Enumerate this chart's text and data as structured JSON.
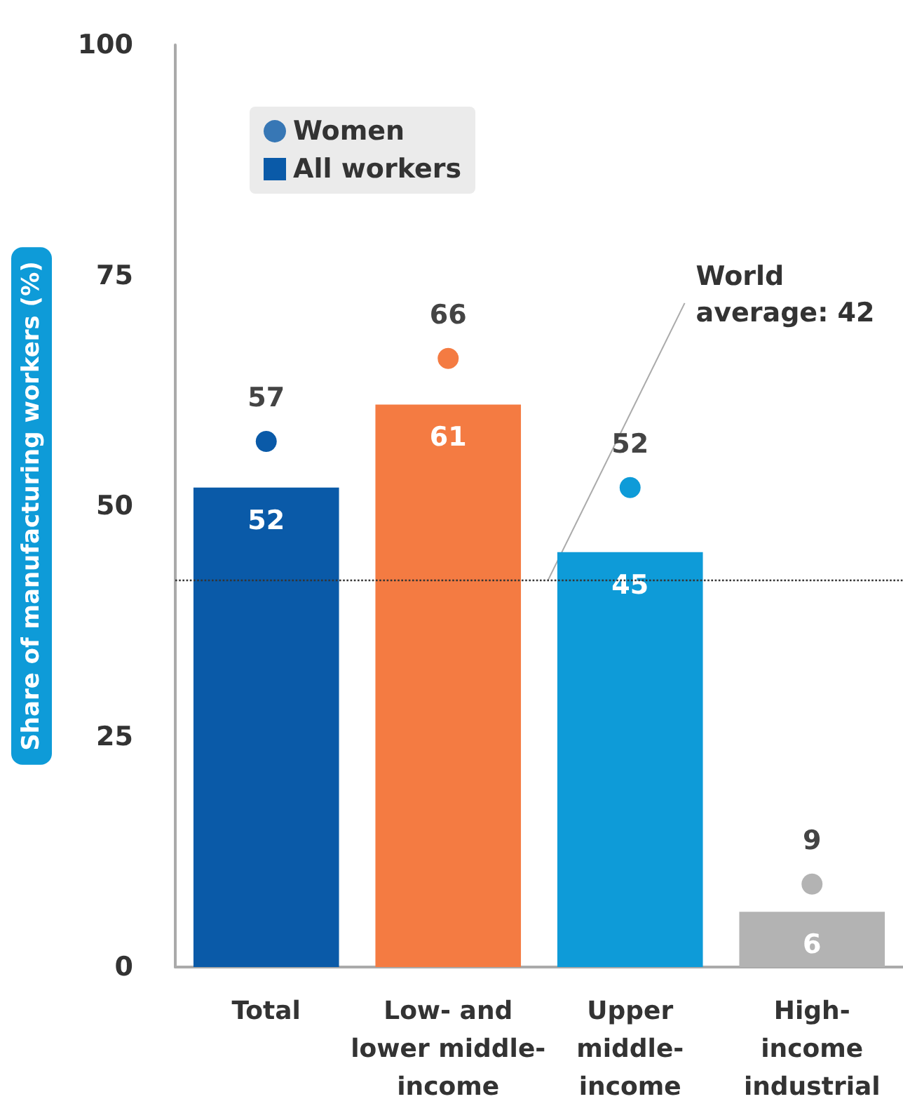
{
  "chart_data": {
    "type": "bar",
    "ylabel": "Share of manufacturing workers (%)",
    "categories": [
      "Total",
      "Low- and\nlower middle-\nincome",
      "Upper\nmiddle-\nincome",
      "High-\nincome\nindustrial"
    ],
    "series": [
      {
        "name": "Women",
        "type": "scatter",
        "colors": [
          "#0a5aa8",
          "#f47b42",
          "#0e9bd8",
          "#b3b3b3"
        ],
        "values": [
          57,
          66,
          52,
          9
        ]
      },
      {
        "name": "All workers",
        "colors": [
          "#0a5aa8",
          "#f47b42",
          "#0e9bd8",
          "#b3b3b3"
        ],
        "values": [
          52,
          61,
          45,
          6
        ]
      }
    ],
    "ylim": [
      0,
      100
    ],
    "yticks": [
      0,
      25,
      50,
      75,
      100
    ],
    "grid": false,
    "legend": "top left",
    "marker": "circle",
    "data_labels": true,
    "ref_lines": [
      {
        "axis": "y",
        "value": 42,
        "label": "World\naverage: 42",
        "line_style": "dotted",
        "color": "#333333"
      }
    ]
  }
}
